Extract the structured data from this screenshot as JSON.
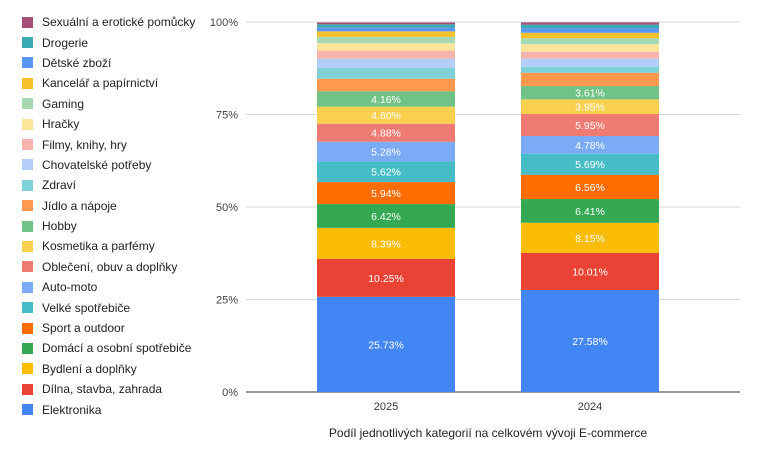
{
  "chart_data": {
    "type": "bar",
    "stacked": true,
    "normalized": true,
    "categories": [
      "2025",
      "2024"
    ],
    "xlabel": "Podíl jednotlivých kategorií na celkovém vývoji E-commerce",
    "ylabel": "",
    "ylim": [
      0,
      100
    ],
    "yticks": [
      "0%",
      "25%",
      "50%",
      "75%",
      "100%"
    ],
    "grid": true,
    "legend_position": "left",
    "series": [
      {
        "name": "Elektronika",
        "color": "#4285f4",
        "values": [
          25.73,
          27.58
        ],
        "labels": [
          "25.73%",
          "27.58%"
        ]
      },
      {
        "name": "Dílna, stavba, zahrada",
        "color": "#ea4335",
        "values": [
          10.25,
          10.01
        ],
        "labels": [
          "10.25%",
          "10.01%"
        ]
      },
      {
        "name": "Bydlení a doplňky",
        "color": "#fbbc04",
        "values": [
          8.39,
          8.15
        ],
        "labels": [
          "8.39%",
          "8.15%"
        ]
      },
      {
        "name": "Domácí a osobní spotřebiče",
        "color": "#34a853",
        "values": [
          6.42,
          6.41
        ],
        "labels": [
          "6.42%",
          "6.41%"
        ]
      },
      {
        "name": "Sport a outdoor",
        "color": "#ff6d01",
        "values": [
          5.94,
          6.56
        ],
        "labels": [
          "5.94%",
          "6.56%"
        ]
      },
      {
        "name": "Velké spotřebiče",
        "color": "#46bdc6",
        "values": [
          5.62,
          5.69
        ],
        "labels": [
          "5.62%",
          "5.69%"
        ]
      },
      {
        "name": "Auto-moto",
        "color": "#7baaf7",
        "values": [
          5.28,
          4.78
        ],
        "labels": [
          "5.28%",
          "4.78%"
        ]
      },
      {
        "name": "Oblečení, obuv a doplňky",
        "color": "#f07b72",
        "values": [
          4.88,
          5.95
        ],
        "labels": [
          "4.88%",
          "5.95%"
        ]
      },
      {
        "name": "Kosmetika a parfémy",
        "color": "#fcd04f",
        "values": [
          4.6,
          3.95
        ],
        "labels": [
          "4.60%",
          "3.95%"
        ]
      },
      {
        "name": "Hobby",
        "color": "#71c287",
        "values": [
          4.16,
          3.61
        ],
        "labels": [
          "4.16%",
          "3.61%"
        ]
      },
      {
        "name": "Jídlo a nápoje",
        "color": "#ff994d",
        "values": [
          3.4,
          3.6
        ],
        "labels": [
          "",
          ""
        ]
      },
      {
        "name": "Zdraví",
        "color": "#7ed1d7",
        "values": [
          2.9,
          1.6
        ],
        "labels": [
          "",
          ""
        ]
      },
      {
        "name": "Chovatelské potřeby",
        "color": "#b3cefb",
        "values": [
          2.5,
          2.2
        ],
        "labels": [
          "",
          ""
        ]
      },
      {
        "name": "Filmy, knihy, hry",
        "color": "#f7b4ae",
        "values": [
          2.2,
          1.9
        ],
        "labels": [
          "",
          ""
        ]
      },
      {
        "name": "Hračky",
        "color": "#fde49b",
        "values": [
          2.0,
          2.0
        ],
        "labels": [
          "",
          ""
        ]
      },
      {
        "name": "Gaming",
        "color": "#a6d9b2",
        "values": [
          1.7,
          1.6
        ],
        "labels": [
          "",
          ""
        ]
      },
      {
        "name": "Kancelář a papírnictví",
        "color": "#f6c02a",
        "values": [
          1.5,
          1.5
        ],
        "labels": [
          "",
          ""
        ]
      },
      {
        "name": "Dětské zboží",
        "color": "#5b95f5",
        "values": [
          1.0,
          1.2
        ],
        "labels": [
          "",
          ""
        ]
      },
      {
        "name": "Drogerie",
        "color": "#3aaab3",
        "values": [
          0.9,
          1.0
        ],
        "labels": [
          "",
          ""
        ]
      },
      {
        "name": "Sexuální a erotické pomůcky",
        "color": "#a64d79",
        "values": [
          0.5,
          0.6
        ],
        "labels": [
          "",
          ""
        ]
      }
    ]
  }
}
